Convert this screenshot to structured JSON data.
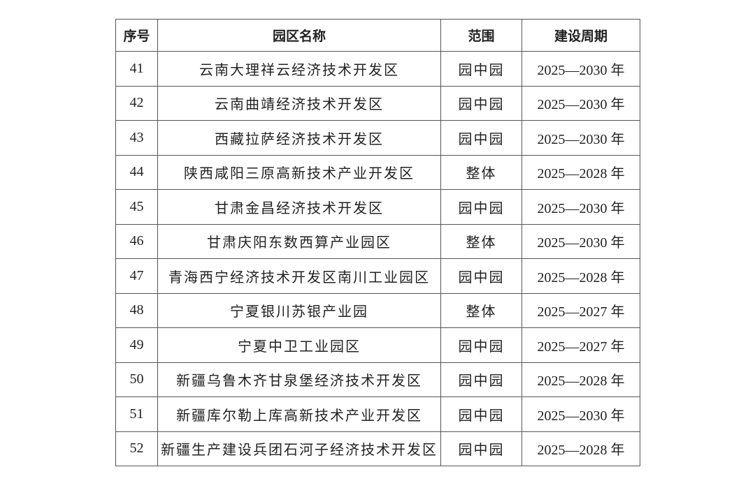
{
  "table": {
    "headers": [
      "序号",
      "园区名称",
      "范围",
      "建设周期"
    ],
    "rows": [
      [
        "41",
        "云南大理祥云经济技术开发区",
        "园中园",
        "2025—2030 年"
      ],
      [
        "42",
        "云南曲靖经济技术开发区",
        "园中园",
        "2025—2030 年"
      ],
      [
        "43",
        "西藏拉萨经济技术开发区",
        "园中园",
        "2025—2030 年"
      ],
      [
        "44",
        "陕西咸阳三原高新技术产业开发区",
        "整体",
        "2025—2028 年"
      ],
      [
        "45",
        "甘肃金昌经济技术开发区",
        "园中园",
        "2025—2030 年"
      ],
      [
        "46",
        "甘肃庆阳东数西算产业园区",
        "整体",
        "2025—2030 年"
      ],
      [
        "47",
        "青海西宁经济技术开发区南川工业园区",
        "园中园",
        "2025—2028 年"
      ],
      [
        "48",
        "宁夏银川苏银产业园",
        "整体",
        "2025—2027 年"
      ],
      [
        "49",
        "宁夏中卫工业园区",
        "园中园",
        "2025—2027 年"
      ],
      [
        "50",
        "新疆乌鲁木齐甘泉堡经济技术开发区",
        "园中园",
        "2025—2028 年"
      ],
      [
        "51",
        "新疆库尔勒上库高新技术产业开发区",
        "园中园",
        "2025—2030 年"
      ],
      [
        "52",
        "新疆生产建设兵团石河子经济技术开发区",
        "园中园",
        "2025—2028 年"
      ]
    ]
  }
}
